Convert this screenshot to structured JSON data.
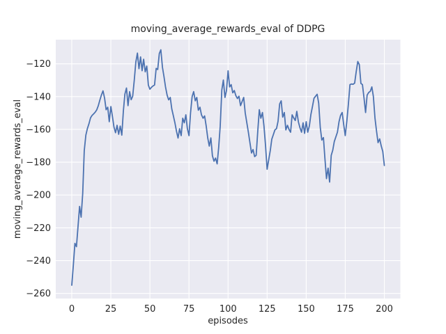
{
  "figure": {
    "title": "moving_average_rewards_eval of DDPG",
    "xlabel": "episodes",
    "ylabel": "moving_average_rewards_eval"
  },
  "colors": {
    "line": "#4c72b0",
    "plot_background": "#eaeaf2",
    "grid": "#ffffff",
    "text": "#262626",
    "figure_background": "#ffffff"
  },
  "chart_data": {
    "type": "line",
    "title": "moving_average_rewards_eval of DDPG",
    "xlabel": "episodes",
    "ylabel": "moving_average_rewards_eval",
    "legend_position": "none",
    "grid": true,
    "x_definition": {
      "start": 0,
      "step": 1,
      "count": 201,
      "meaning": "episode index"
    },
    "x_ticks": [
      0,
      25,
      50,
      75,
      100,
      125,
      150,
      175,
      200
    ],
    "y_ticks": [
      -120,
      -140,
      -160,
      -180,
      -200,
      -220,
      -240,
      -260
    ],
    "xlim": [
      -10.25,
      210.25
    ],
    "ylim": [
      -263.1,
      -105.3
    ],
    "values": [
      -255,
      -243,
      -229.5,
      -231.5,
      -219,
      -207,
      -213.5,
      -199,
      -173,
      -163.5,
      -159.5,
      -156.5,
      -153,
      -151.5,
      -150.5,
      -149.5,
      -148,
      -145.5,
      -142,
      -139,
      -136.5,
      -141,
      -148,
      -146.5,
      -155.3,
      -146.1,
      -152,
      -158.5,
      -162,
      -157.5,
      -163,
      -158,
      -163.5,
      -149,
      -138.5,
      -134.8,
      -145.5,
      -137,
      -141.9,
      -139.8,
      -129.9,
      -119,
      -113.5,
      -123,
      -115.8,
      -124.2,
      -117.2,
      -124.9,
      -121.4,
      -133,
      -135.5,
      -134.3,
      -133.5,
      -132.9,
      -122.8,
      -123.5,
      -113.8,
      -111.5,
      -122.1,
      -127.8,
      -134.1,
      -139.1,
      -142,
      -140.5,
      -147.5,
      -151.8,
      -156,
      -161,
      -165.3,
      -159.6,
      -163.8,
      -153.2,
      -156,
      -151.1,
      -159.6,
      -163.8,
      -150,
      -140,
      -137,
      -142.6,
      -140.5,
      -148.3,
      -146.5,
      -151.1,
      -153.2,
      -151.8,
      -158,
      -165.2,
      -170.2,
      -165.2,
      -176,
      -179.4,
      -177.5,
      -181,
      -171,
      -158,
      -136,
      -129.9,
      -140.5,
      -136.3,
      -124.3,
      -134.1,
      -132.7,
      -137.7,
      -136.3,
      -139.5,
      -141.2,
      -139.8,
      -145.5,
      -143,
      -140.5,
      -150,
      -156,
      -161.7,
      -168,
      -174.4,
      -172.3,
      -176.6,
      -175.8,
      -161,
      -148,
      -153.2,
      -149.7,
      -158,
      -170.2,
      -184.3,
      -178.5,
      -173,
      -166,
      -163.1,
      -160.3,
      -159.5,
      -155,
      -144.5,
      -142.6,
      -152.5,
      -149.7,
      -160.3,
      -157.5,
      -160,
      -161.7,
      -151.1,
      -153,
      -154.6,
      -149,
      -155.5,
      -158.9,
      -161.7,
      -156,
      -162.4,
      -155.3,
      -161.7,
      -158,
      -151,
      -146,
      -141,
      -139.8,
      -138.6,
      -144,
      -158.9,
      -166.5,
      -165,
      -178,
      -190,
      -183.6,
      -192.1,
      -175.8,
      -172.7,
      -167.4,
      -164.5,
      -161.7,
      -155.3,
      -151.5,
      -149.7,
      -157,
      -163.8,
      -155,
      -144.7,
      -132.7,
      -132.3,
      -132.5,
      -131.8,
      -125,
      -118.6,
      -120.5,
      -132,
      -132.7,
      -141,
      -149.7,
      -139.1,
      -137.5,
      -136.8,
      -134.1,
      -140,
      -153.2,
      -161,
      -168.1,
      -165.8,
      -170,
      -173.5,
      -182
    ]
  }
}
